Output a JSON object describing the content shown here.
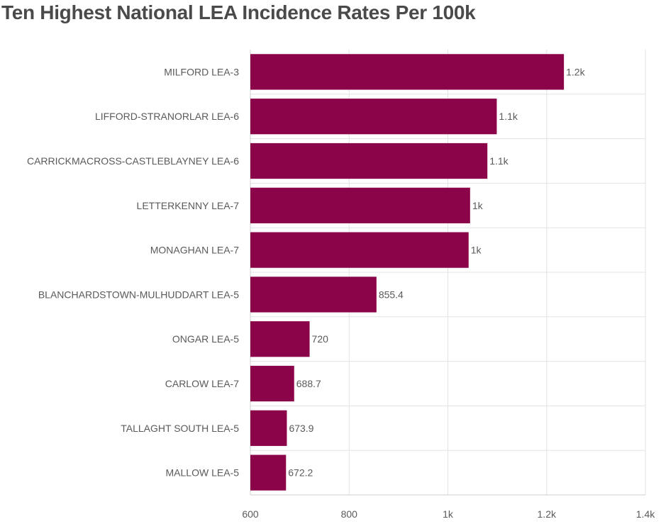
{
  "title": "Ten Highest National LEA Incidence Rates Per 100k",
  "colors": {
    "bar": "#8b0348",
    "grid": "#e3e3e3",
    "axis": "#cfcfcf",
    "text": "#5a5a5a"
  },
  "chart_data": {
    "type": "bar",
    "orientation": "horizontal",
    "title": "Ten Highest National LEA Incidence Rates Per 100k",
    "xlabel": "",
    "ylabel": "",
    "xlim": [
      600,
      1400
    ],
    "grid": true,
    "categories": [
      "MILFORD LEA-3",
      "LIFFORD-STRANORLAR LEA-6",
      "CARRICKMACROSS-CASTLEBLAYNEY LEA-6",
      "LETTERKENNY LEA-7",
      "MONAGHAN LEA-7",
      "BLANCHARDSTOWN-MULHUDDART LEA-5",
      "ONGAR LEA-5",
      "CARLOW LEA-7",
      "TALLAGHT SOUTH LEA-5",
      "MALLOW LEA-5"
    ],
    "values": [
      1235,
      1099,
      1080,
      1045,
      1042,
      855.4,
      720,
      688.7,
      673.9,
      672.2
    ],
    "data_labels": [
      "1.2k",
      "1.1k",
      "1.1k",
      "1k",
      "1k",
      "855.4",
      "720",
      "688.7",
      "673.9",
      "672.2"
    ],
    "ticks": [
      600,
      800,
      1000,
      1200,
      1400
    ],
    "tick_labels": [
      "600",
      "800",
      "1k",
      "1.2k",
      "1.4k"
    ]
  }
}
